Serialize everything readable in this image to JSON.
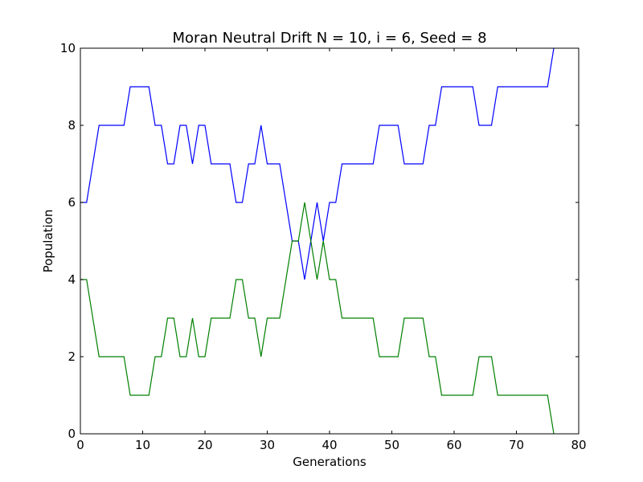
{
  "chart_data": {
    "type": "line",
    "title": "Moran Neutral Drift N = 10, i = 6, Seed = 8",
    "xlabel": "Generations",
    "ylabel": "Population",
    "xlim": [
      0,
      80
    ],
    "ylim": [
      0,
      10
    ],
    "xticks": [
      "0",
      "10",
      "20",
      "30",
      "40",
      "50",
      "60",
      "70",
      "80"
    ],
    "yticks": [
      "0",
      "2",
      "4",
      "6",
      "8",
      "10"
    ],
    "grid": false,
    "legend": "none",
    "series": [
      {
        "color": "#0000ff",
        "x": [
          0,
          1,
          2,
          3,
          4,
          5,
          6,
          7,
          8,
          9,
          10,
          11,
          12,
          13,
          14,
          15,
          16,
          17,
          18,
          19,
          20,
          21,
          22,
          23,
          24,
          25,
          26,
          27,
          28,
          29,
          30,
          31,
          32,
          33,
          34,
          35,
          36,
          37,
          38,
          39,
          40,
          41,
          42,
          43,
          44,
          45,
          46,
          47,
          48,
          49,
          50,
          51,
          52,
          53,
          54,
          55,
          56,
          57,
          58,
          59,
          60,
          61,
          62,
          63,
          64,
          65,
          66,
          67,
          68,
          69,
          70,
          71,
          72,
          73,
          74,
          75,
          76
        ],
        "y": [
          6,
          6,
          7,
          8,
          8,
          8,
          8,
          8,
          9,
          9,
          9,
          9,
          8,
          8,
          7,
          7,
          8,
          8,
          7,
          8,
          8,
          7,
          7,
          7,
          7,
          6,
          6,
          7,
          7,
          8,
          7,
          7,
          7,
          6,
          5,
          5,
          4,
          5,
          6,
          5,
          6,
          6,
          7,
          7,
          7,
          7,
          7,
          7,
          8,
          8,
          8,
          8,
          7,
          7,
          7,
          7,
          8,
          8,
          9,
          9,
          9,
          9,
          9,
          9,
          8,
          8,
          8,
          9,
          9,
          9,
          9,
          9,
          9,
          9,
          9,
          9,
          10
        ]
      },
      {
        "color": "#008000",
        "x": [
          0,
          1,
          2,
          3,
          4,
          5,
          6,
          7,
          8,
          9,
          10,
          11,
          12,
          13,
          14,
          15,
          16,
          17,
          18,
          19,
          20,
          21,
          22,
          23,
          24,
          25,
          26,
          27,
          28,
          29,
          30,
          31,
          32,
          33,
          34,
          35,
          36,
          37,
          38,
          39,
          40,
          41,
          42,
          43,
          44,
          45,
          46,
          47,
          48,
          49,
          50,
          51,
          52,
          53,
          54,
          55,
          56,
          57,
          58,
          59,
          60,
          61,
          62,
          63,
          64,
          65,
          66,
          67,
          68,
          69,
          70,
          71,
          72,
          73,
          74,
          75,
          76
        ],
        "y": [
          4,
          4,
          3,
          2,
          2,
          2,
          2,
          2,
          1,
          1,
          1,
          1,
          2,
          2,
          3,
          3,
          2,
          2,
          3,
          2,
          2,
          3,
          3,
          3,
          3,
          4,
          4,
          3,
          3,
          2,
          3,
          3,
          3,
          4,
          5,
          5,
          6,
          5,
          4,
          5,
          4,
          4,
          3,
          3,
          3,
          3,
          3,
          3,
          2,
          2,
          2,
          2,
          3,
          3,
          3,
          3,
          2,
          2,
          1,
          1,
          1,
          1,
          1,
          1,
          2,
          2,
          2,
          1,
          1,
          1,
          1,
          1,
          1,
          1,
          1,
          1,
          0
        ]
      }
    ]
  }
}
